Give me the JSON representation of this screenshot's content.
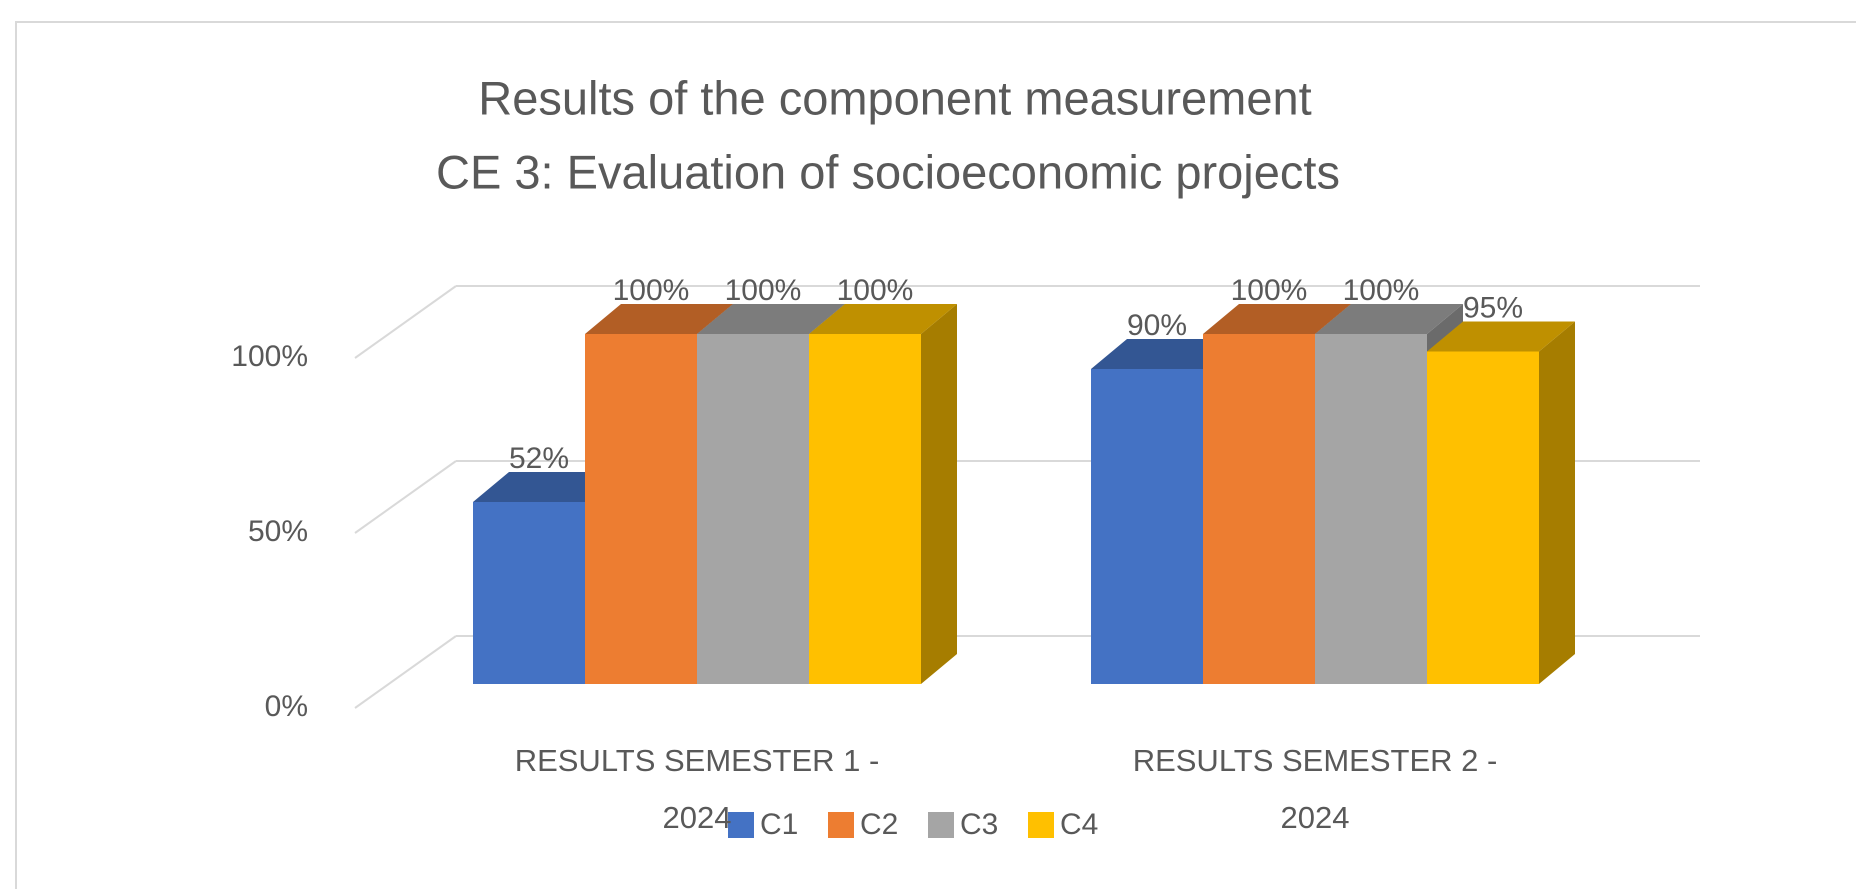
{
  "chart_data": {
    "type": "bar3d",
    "title": "Results of the component measurement",
    "subtitle": "CE 3: Evaluation of socioeconomic projects",
    "categories": [
      "RESULTS SEMESTER 1 - 2024",
      "RESULTS SEMESTER 2 - 2024"
    ],
    "series": [
      {
        "name": "C1",
        "color": "#4472c4",
        "values": [
          52,
          90
        ],
        "value_labels": [
          "52%",
          "90%"
        ]
      },
      {
        "name": "C2",
        "color": "#ed7d31",
        "values": [
          100,
          100
        ],
        "value_labels": [
          "100%",
          "100%"
        ]
      },
      {
        "name": "C3",
        "color": "#a5a5a5",
        "values": [
          100,
          100
        ],
        "value_labels": [
          "100%",
          "100%"
        ]
      },
      {
        "name": "C4",
        "color": "#ffc000",
        "values": [
          100,
          95
        ],
        "value_labels": [
          "100%",
          "95%"
        ]
      }
    ],
    "ylim": [
      0,
      100
    ],
    "yticks": [
      {
        "value": 0,
        "label": "0%"
      },
      {
        "value": 50,
        "label": "50%"
      },
      {
        "value": 100,
        "label": "100%"
      }
    ],
    "grid": true,
    "legend": "bottom"
  }
}
